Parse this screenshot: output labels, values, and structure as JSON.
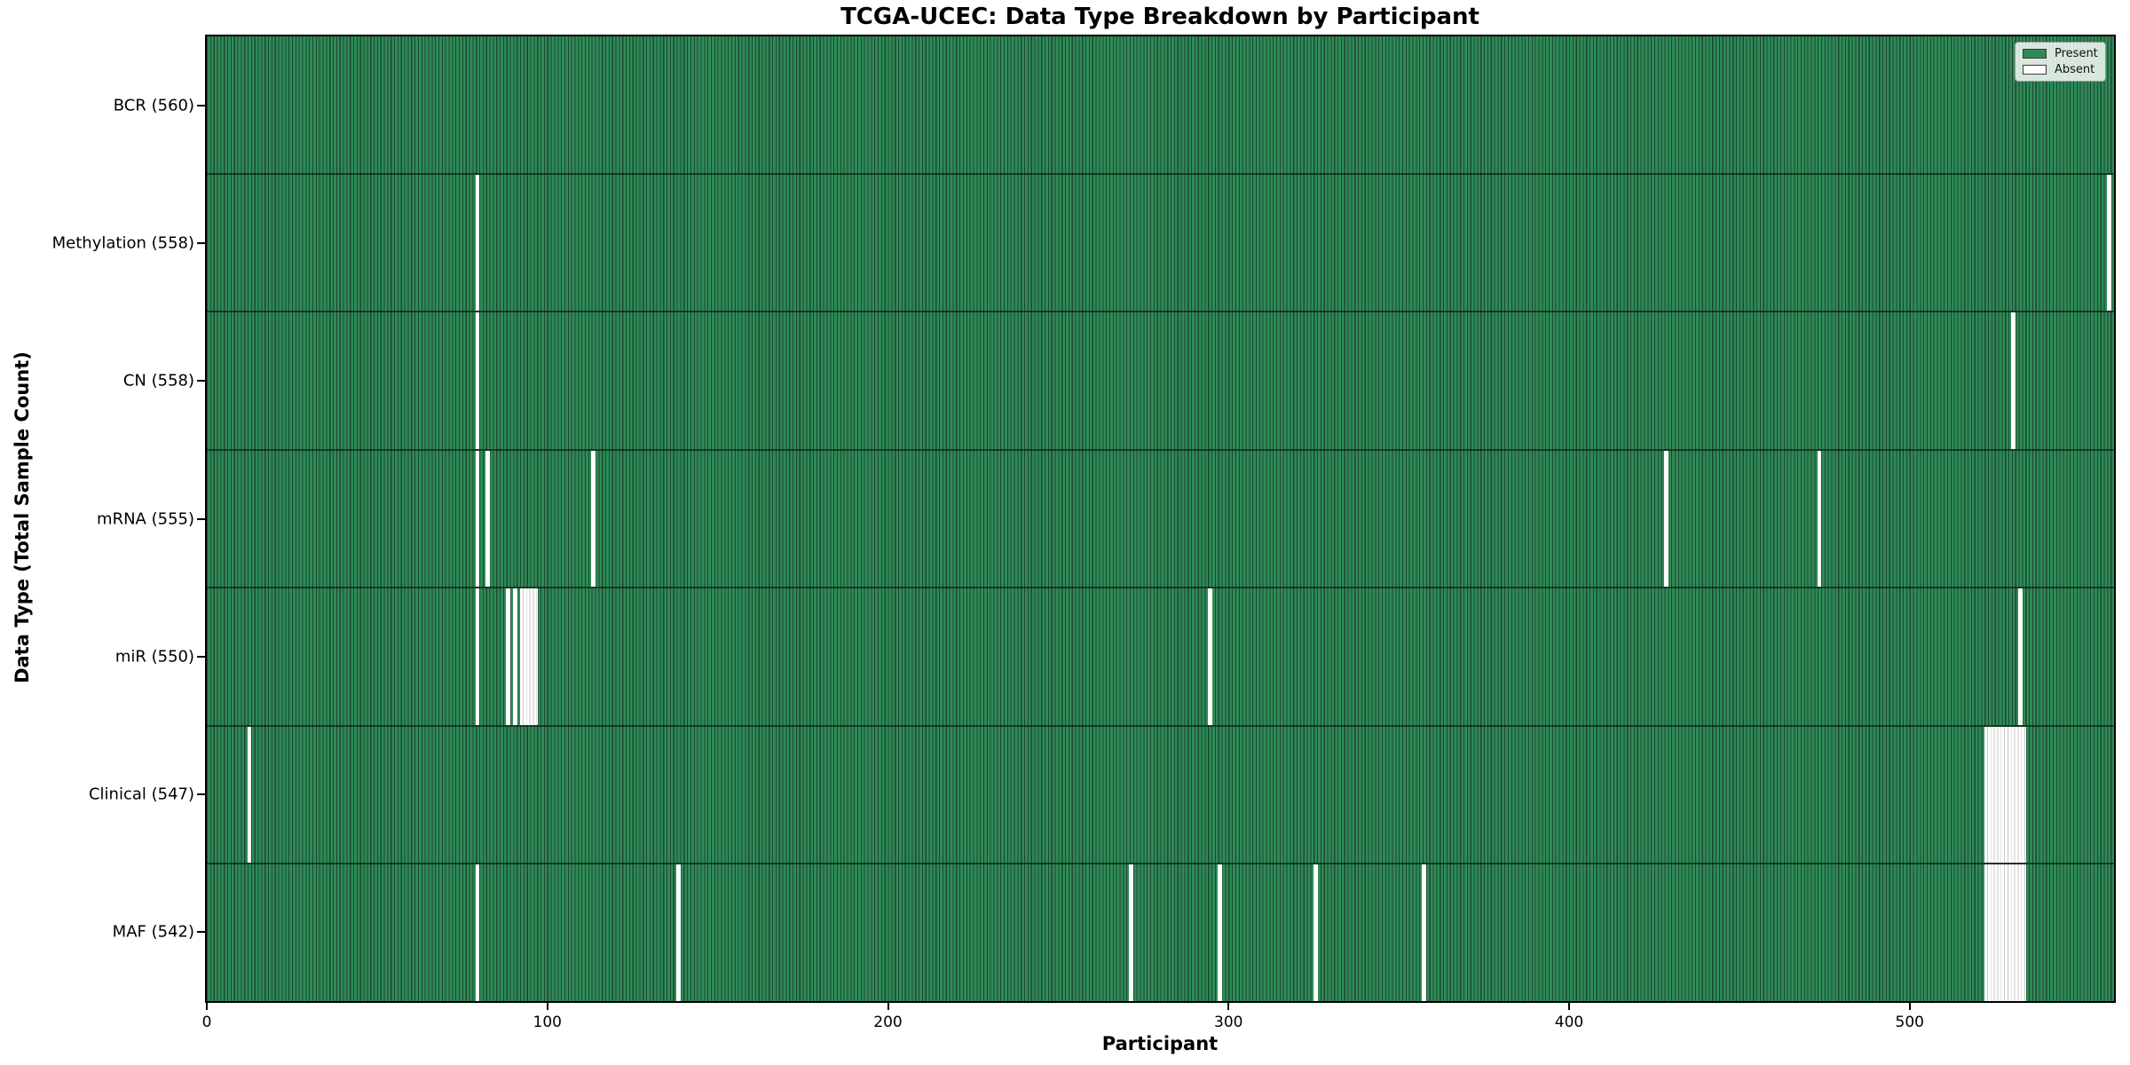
{
  "title": "TCGA-UCEC: Data Type Breakdown by Participant",
  "xlabel": "Participant",
  "ylabel": "Data Type (Total Sample Count)",
  "legend": {
    "present_label": "Present",
    "absent_label": "Absent"
  },
  "colors": {
    "present": "#2e8b57",
    "absent": "#ffffff",
    "bar_edge": "#1e4731",
    "block_separator": "#c9c9c9",
    "frame": "#000000"
  },
  "chart_data": {
    "type": "heatmap",
    "title": "TCGA-UCEC: Data Type Breakdown by Participant",
    "xlabel": "Participant",
    "ylabel": "Data Type (Total Sample Count)",
    "x_range": [
      0,
      560
    ],
    "x_ticks": [
      0,
      100,
      200,
      300,
      400,
      500
    ],
    "n_participants": 560,
    "legend_entries": [
      "Present",
      "Absent"
    ],
    "legend_position": "upper right",
    "grid": false,
    "rows": [
      {
        "name": "BCR",
        "label": "BCR (560)",
        "present_count": 560,
        "absent_participants": []
      },
      {
        "name": "Methylation",
        "label": "Methylation (558)",
        "present_count": 558,
        "absent_participants": [
          79,
          558
        ]
      },
      {
        "name": "CN",
        "label": "CN (558)",
        "present_count": 558,
        "absent_participants": [
          79,
          530
        ]
      },
      {
        "name": "mRNA",
        "label": "mRNA (555)",
        "present_count": 555,
        "absent_participants": [
          79,
          82,
          113,
          428,
          473
        ]
      },
      {
        "name": "miR",
        "label": "miR (550)",
        "present_count": 550,
        "absent_participants": [
          79,
          88,
          90,
          92,
          93,
          94,
          95,
          96,
          294,
          532
        ]
      },
      {
        "name": "Clinical",
        "label": "Clinical (547)",
        "present_count": 547,
        "absent_participants": [
          12,
          522,
          523,
          524,
          525,
          526,
          527,
          528,
          529,
          530,
          531,
          532,
          533
        ]
      },
      {
        "name": "MAF",
        "label": "MAF (542)",
        "present_count": 542,
        "absent_participants": [
          79,
          138,
          271,
          297,
          325,
          357,
          522,
          523,
          524,
          525,
          526,
          527,
          528,
          529,
          530,
          531,
          532,
          533
        ]
      }
    ]
  }
}
